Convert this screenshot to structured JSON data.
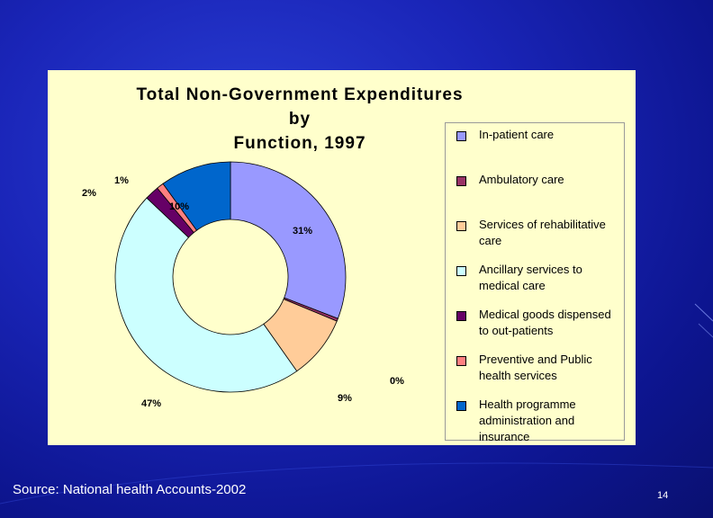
{
  "chart_data": {
    "type": "pie",
    "title_line1": "Total Non-Government Expenditures by",
    "title_line2": "Function, 1997",
    "donut": true,
    "start_angle_deg": 0,
    "categories": [
      "In-patient care",
      "Ambulatory care",
      "Services of rehabilitative care",
      "Ancillary services to medical care",
      "Medical goods dispensed to out-patients",
      "Preventive and Public health services",
      "Health programme administration and insurance"
    ],
    "values": [
      31,
      0.4,
      9,
      47,
      2,
      1,
      10
    ],
    "labels": [
      "31%",
      "0%",
      "9%",
      "47%",
      "2%",
      "1%",
      "10%"
    ],
    "colors": [
      "#9999ff",
      "#993366",
      "#ffcc99",
      "#ccffff",
      "#660066",
      "#ff8080",
      "#0066cc"
    ],
    "legend_placement": "right"
  },
  "legend": {
    "items": [
      {
        "line1": "In-patient care",
        "line2": "",
        "line3": ""
      },
      {
        "line1": "Ambulatory care",
        "line2": "",
        "line3": ""
      },
      {
        "line1": "Services of rehabilitative",
        "line2": "care",
        "line3": ""
      },
      {
        "line1": "Ancillary services to",
        "line2": "medical care",
        "line3": ""
      },
      {
        "line1": "Medical goods dispensed",
        "line2": "to out-patients",
        "line3": ""
      },
      {
        "line1": "Preventive and Public",
        "line2": "health services",
        "line3": ""
      },
      {
        "line1": "Health programme",
        "line2": "administration and",
        "line3": "insurance"
      }
    ]
  },
  "footer": {
    "source": "Source: National health Accounts-2002",
    "page_number": "14"
  }
}
